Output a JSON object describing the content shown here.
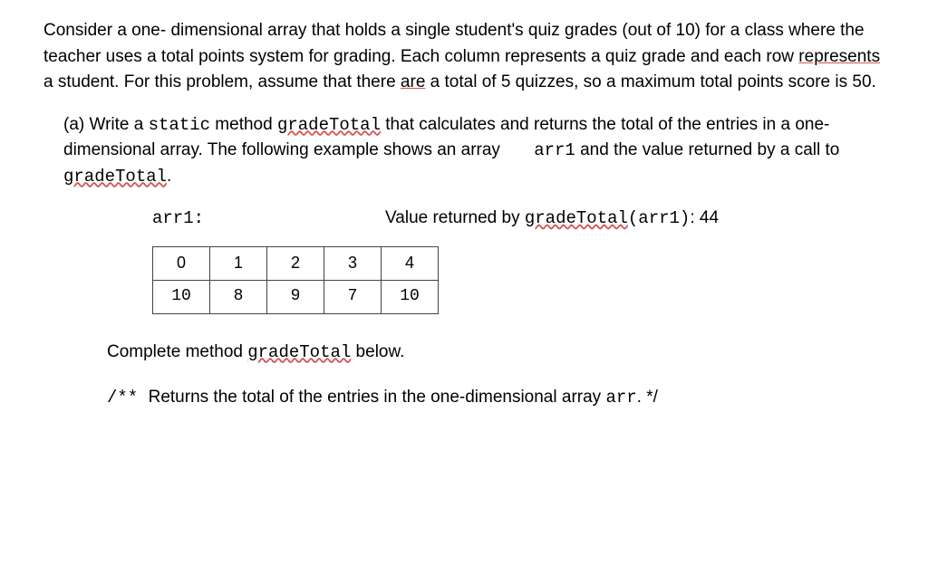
{
  "intro": {
    "t1": "Consider a one- dimensional array that holds a single student's quiz grades (out of 10) for a class where the teacher uses a total points system for grading. Each column represents a quiz grade and each row ",
    "represents": "represents",
    "t2": " a student. For this problem, assume that there ",
    "are": "are",
    "t3": " a total of 5 quizzes, so a maximum total points score is 50."
  },
  "partA": {
    "label": "(a) ",
    "t1": "Write a ",
    "static": "static",
    "t2": " method ",
    "gradeTotal1": "gradeTotal",
    "t3": " that calculates and returns the total of the entries in a one-dimensional array. The following example shows an array ",
    "arr1": "arr1",
    "t4": " and the value returned by a call to ",
    "gradeTotal2": "gradeTotal",
    "dot": "."
  },
  "example": {
    "arr1Label": "arr1:",
    "returnedPrefix": "Value returned by ",
    "gradeTotalCall": "gradeTotal",
    "callArgs": "(arr1)",
    "returnedSuffix": ": 44",
    "indices": [
      "0",
      "1",
      "2",
      "3",
      "4"
    ],
    "values": [
      "10",
      "8",
      "9",
      "7",
      "10"
    ]
  },
  "complete": {
    "t1": "Complete method ",
    "gradeTotal": "gradeTotal",
    "t2": " below."
  },
  "comment": {
    "open": "/** ",
    "text": "Returns the total of the entries in the one-dimensional array ",
    "arr": "arr",
    "close": ". */"
  }
}
